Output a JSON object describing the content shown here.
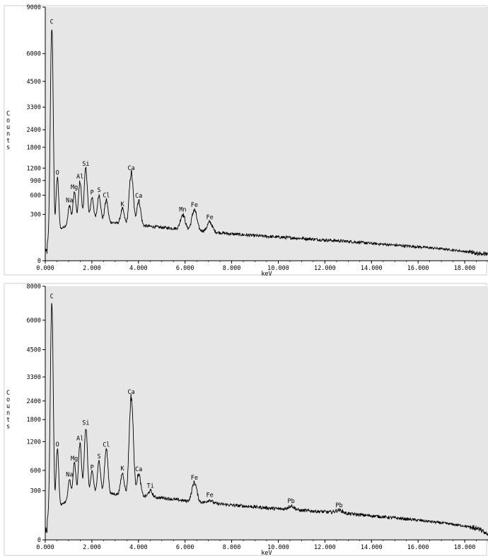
{
  "chart_data": [
    {
      "type": "line",
      "xlabel": "keV",
      "ylabel": "Counts",
      "xlim": [
        0,
        19
      ],
      "yscale": "sqrt",
      "ylim": [
        0,
        9000
      ],
      "y_ticks": [
        "9000",
        "6000",
        "4500",
        "3300",
        "2400",
        "1800",
        "1200",
        "900",
        "600",
        "300",
        "0"
      ],
      "y_tick_values": [
        9000,
        6000,
        4500,
        3300,
        2400,
        1800,
        1200,
        900,
        600,
        300,
        0
      ],
      "x_ticks": [
        "0.000",
        "2.000",
        "4.000",
        "6.000",
        "8.000",
        "10.000",
        "12.000",
        "14.000",
        "16.000",
        "18.000"
      ],
      "x_tick_values": [
        0,
        2,
        4,
        6,
        8,
        10,
        12,
        14,
        16,
        18
      ],
      "background": "#e6e6e6",
      "line_color": "#000000",
      "peaks": [
        {
          "label": "C",
          "x": 0.28,
          "y": 7600
        },
        {
          "label": "O",
          "x": 0.52,
          "y": 850
        },
        {
          "label": "Na",
          "x": 1.04,
          "y": 240
        },
        {
          "label": "Mg",
          "x": 1.25,
          "y": 450
        },
        {
          "label": "Al",
          "x": 1.49,
          "y": 650
        },
        {
          "label": "Si",
          "x": 1.74,
          "y": 950
        },
        {
          "label": "P",
          "x": 2.01,
          "y": 320
        },
        {
          "label": "S",
          "x": 2.31,
          "y": 380
        },
        {
          "label": "Cl",
          "x": 2.62,
          "y": 300
        },
        {
          "label": "K",
          "x": 3.31,
          "y": 180
        },
        {
          "label": "Ca",
          "x": 3.69,
          "y": 900
        },
        {
          "label": "Ca",
          "x": 4.01,
          "y": 330
        },
        {
          "label": "Mn",
          "x": 5.9,
          "y": 160
        },
        {
          "label": "Fe",
          "x": 6.4,
          "y": 230
        },
        {
          "label": "Fe",
          "x": 7.06,
          "y": 90
        }
      ],
      "baseline": [
        [
          0.0,
          30
        ],
        [
          0.6,
          130
        ],
        [
          1.0,
          190
        ],
        [
          1.5,
          230
        ],
        [
          2.0,
          240
        ],
        [
          3.0,
          200
        ],
        [
          4.0,
          175
        ],
        [
          5.0,
          155
        ],
        [
          6.0,
          140
        ],
        [
          7.0,
          120
        ],
        [
          8.0,
          100
        ],
        [
          9.0,
          88
        ],
        [
          10.0,
          78
        ],
        [
          11.0,
          70
        ],
        [
          12.0,
          60
        ],
        [
          13.0,
          52
        ],
        [
          14.0,
          42
        ],
        [
          15.0,
          34
        ],
        [
          16.0,
          27
        ],
        [
          17.0,
          20
        ],
        [
          18.0,
          12
        ],
        [
          18.6,
          8
        ],
        [
          19.0,
          6
        ]
      ],
      "noise": 0.05
    },
    {
      "type": "line",
      "xlabel": "keV",
      "ylabel": "Counts",
      "xlim": [
        0,
        19
      ],
      "yscale": "sqrt",
      "ylim": [
        0,
        8000
      ],
      "y_ticks": [
        "8000",
        "6000",
        "4500",
        "3300",
        "2400",
        "1800",
        "1200",
        "600",
        "300",
        "0"
      ],
      "y_tick_values": [
        8000,
        6000,
        4500,
        3300,
        2400,
        1800,
        1200,
        600,
        300,
        0
      ],
      "x_ticks": [
        "0.000",
        "2.000",
        "4.000",
        "6.000",
        "8.000",
        "10.000",
        "12.000",
        "14.000",
        "16.000",
        "18.000"
      ],
      "x_tick_values": [
        0,
        2,
        4,
        6,
        8,
        10,
        12,
        14,
        16,
        18
      ],
      "background": "#e6e6e6",
      "line_color": "#000000",
      "peaks": [
        {
          "label": "C",
          "x": 0.28,
          "y": 7000
        },
        {
          "label": "O",
          "x": 0.52,
          "y": 900
        },
        {
          "label": "Na",
          "x": 1.04,
          "y": 250
        },
        {
          "label": "Mg",
          "x": 1.25,
          "y": 500
        },
        {
          "label": "Al",
          "x": 1.49,
          "y": 900
        },
        {
          "label": "Si",
          "x": 1.74,
          "y": 1300
        },
        {
          "label": "P",
          "x": 2.01,
          "y": 300
        },
        {
          "label": "S",
          "x": 2.31,
          "y": 500
        },
        {
          "label": "Cl",
          "x": 2.62,
          "y": 750
        },
        {
          "label": "K",
          "x": 3.31,
          "y": 300
        },
        {
          "label": "Ca",
          "x": 3.69,
          "y": 2300
        },
        {
          "label": "Ca",
          "x": 4.01,
          "y": 300
        },
        {
          "label": "Ti",
          "x": 4.51,
          "y": 70
        },
        {
          "label": "Fe",
          "x": 6.4,
          "y": 230
        },
        {
          "label": "Fe",
          "x": 7.06,
          "y": 30
        },
        {
          "label": "Pb",
          "x": 10.55,
          "y": 30
        },
        {
          "label": "Pb",
          "x": 12.61,
          "y": 20
        }
      ],
      "baseline": [
        [
          0.0,
          40
        ],
        [
          0.6,
          140
        ],
        [
          1.0,
          200
        ],
        [
          1.5,
          260
        ],
        [
          2.0,
          270
        ],
        [
          3.0,
          260
        ],
        [
          4.0,
          240
        ],
        [
          5.0,
          220
        ],
        [
          6.0,
          190
        ],
        [
          7.0,
          170
        ],
        [
          8.0,
          150
        ],
        [
          9.0,
          135
        ],
        [
          10.0,
          120
        ],
        [
          11.0,
          108
        ],
        [
          12.0,
          98
        ],
        [
          13.0,
          85
        ],
        [
          14.0,
          72
        ],
        [
          15.0,
          60
        ],
        [
          16.0,
          48
        ],
        [
          17.0,
          36
        ],
        [
          18.0,
          24
        ],
        [
          18.6,
          14
        ],
        [
          19.0,
          3
        ]
      ],
      "noise": 0.04
    }
  ]
}
